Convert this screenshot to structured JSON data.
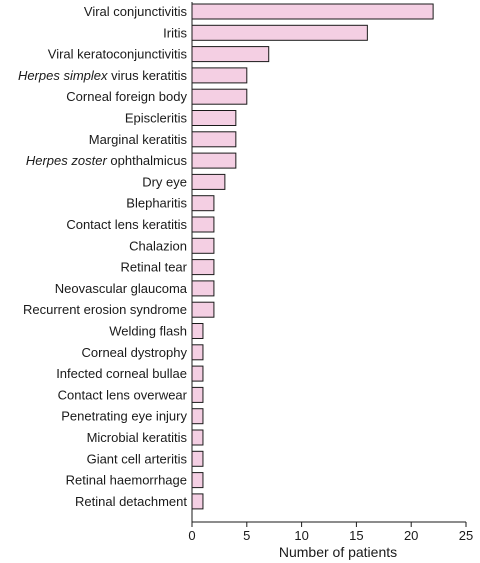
{
  "chart_data": {
    "type": "bar",
    "orientation": "horizontal",
    "categories": [
      {
        "parts": [
          {
            "text": "Viral conjunctivitis",
            "italic": false
          }
        ]
      },
      {
        "parts": [
          {
            "text": "Iritis",
            "italic": false
          }
        ]
      },
      {
        "parts": [
          {
            "text": "Viral keratoconjunctivitis",
            "italic": false
          }
        ]
      },
      {
        "parts": [
          {
            "text": "Herpes simplex",
            "italic": true
          },
          {
            "text": " virus keratitis",
            "italic": false
          }
        ]
      },
      {
        "parts": [
          {
            "text": "Corneal foreign body",
            "italic": false
          }
        ]
      },
      {
        "parts": [
          {
            "text": "Episcleritis",
            "italic": false
          }
        ]
      },
      {
        "parts": [
          {
            "text": "Marginal keratitis",
            "italic": false
          }
        ]
      },
      {
        "parts": [
          {
            "text": "Herpes zoster",
            "italic": true
          },
          {
            "text": " ophthalmicus",
            "italic": false
          }
        ]
      },
      {
        "parts": [
          {
            "text": "Dry eye",
            "italic": false
          }
        ]
      },
      {
        "parts": [
          {
            "text": "Blepharitis",
            "italic": false
          }
        ]
      },
      {
        "parts": [
          {
            "text": "Contact lens keratitis",
            "italic": false
          }
        ]
      },
      {
        "parts": [
          {
            "text": "Chalazion",
            "italic": false
          }
        ]
      },
      {
        "parts": [
          {
            "text": "Retinal tear",
            "italic": false
          }
        ]
      },
      {
        "parts": [
          {
            "text": "Neovascular glaucoma",
            "italic": false
          }
        ]
      },
      {
        "parts": [
          {
            "text": "Recurrent erosion syndrome",
            "italic": false
          }
        ]
      },
      {
        "parts": [
          {
            "text": "Welding flash",
            "italic": false
          }
        ]
      },
      {
        "parts": [
          {
            "text": "Corneal dystrophy",
            "italic": false
          }
        ]
      },
      {
        "parts": [
          {
            "text": "Infected corneal bullae",
            "italic": false
          }
        ]
      },
      {
        "parts": [
          {
            "text": "Contact lens overwear",
            "italic": false
          }
        ]
      },
      {
        "parts": [
          {
            "text": "Penetrating eye injury",
            "italic": false
          }
        ]
      },
      {
        "parts": [
          {
            "text": "Microbial keratitis",
            "italic": false
          }
        ]
      },
      {
        "parts": [
          {
            "text": "Giant cell arteritis",
            "italic": false
          }
        ]
      },
      {
        "parts": [
          {
            "text": "Retinal haemorrhage",
            "italic": false
          }
        ]
      },
      {
        "parts": [
          {
            "text": "Retinal detachment",
            "italic": false
          }
        ]
      }
    ],
    "values": [
      22,
      16,
      7,
      5,
      5,
      4,
      4,
      4,
      3,
      2,
      2,
      2,
      2,
      2,
      2,
      1,
      1,
      1,
      1,
      1,
      1,
      1,
      1,
      1
    ],
    "xlabel": "Number of patients",
    "ylabel": "",
    "title": "",
    "xlim": [
      0,
      25
    ],
    "xticks": [
      0,
      5,
      10,
      15,
      20,
      25
    ],
    "grid": false,
    "legend": "none",
    "colors": {
      "bar_fill": "#f4cfe3",
      "bar_stroke": "#1a1a1a",
      "axis": "#1a1a1a",
      "text": "#1a1a1a"
    }
  }
}
